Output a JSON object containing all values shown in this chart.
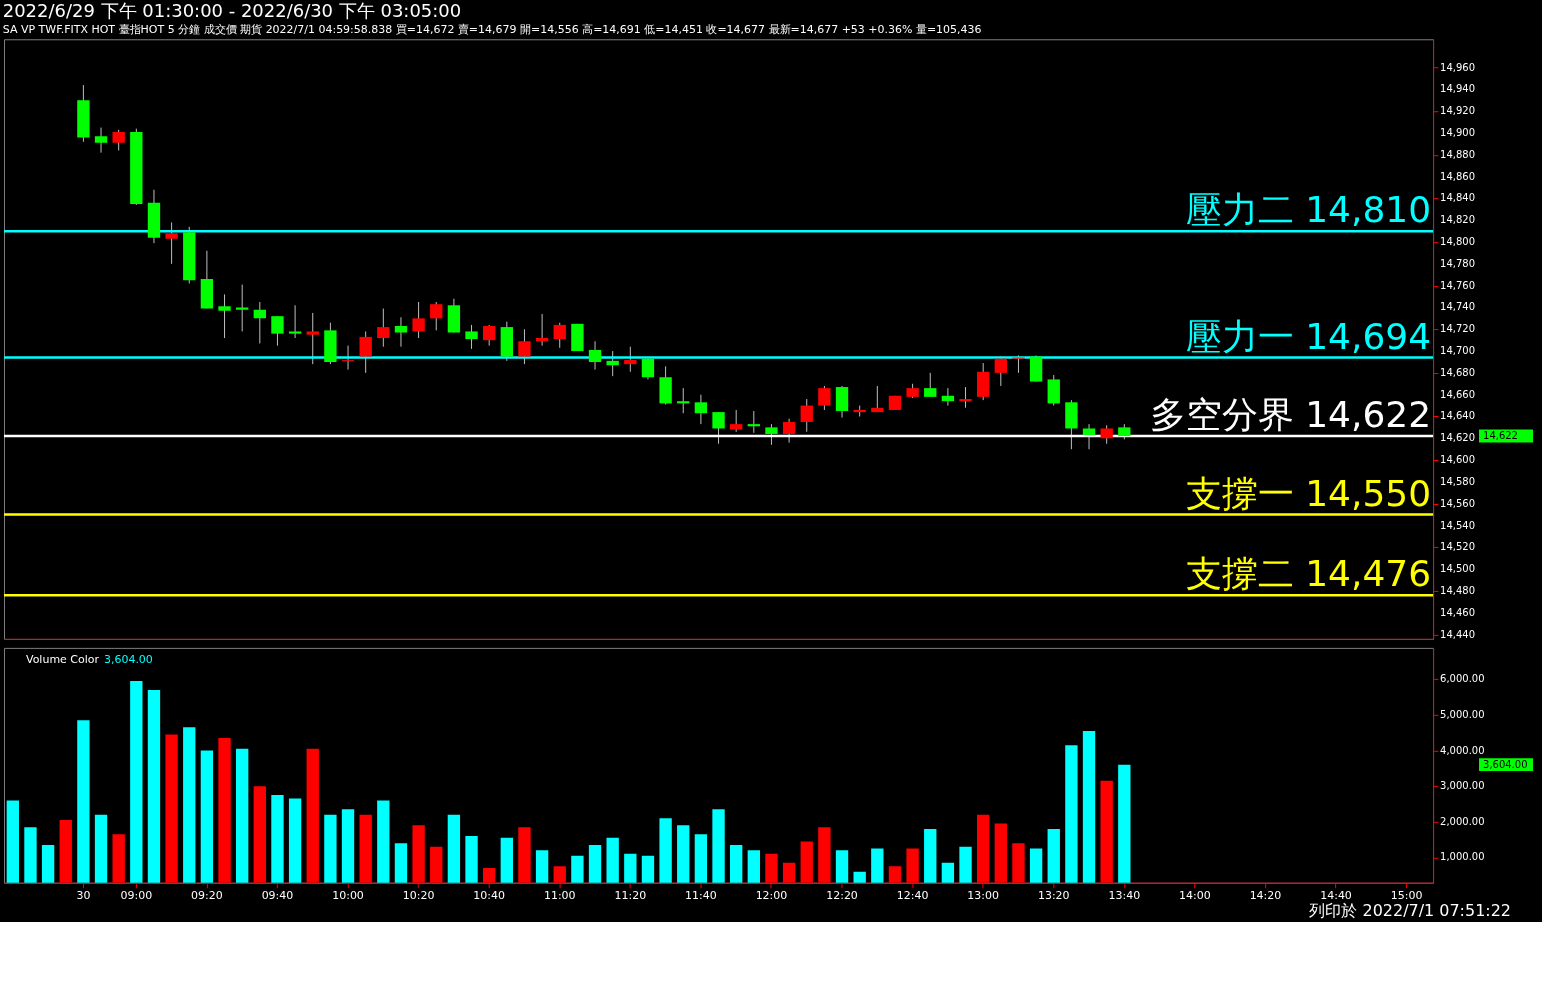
{
  "chart_data": [
    {
      "type": "candlestick",
      "title": "2022/6/29 下午 01:30:00 - 2022/6/30 下午 03:05:00",
      "subtitle": "SA  VP  TWF.FITX HOT  臺指HOT 5 分鐘  成交價  期貨  2022/7/1  04:59:58.838 買=14,672 賣=14,679 開=14,556 高=14,691 低=14,451 收=14,677 最新=14,677 +53 +0.36% 量=105,436",
      "categories": [
        null,
        null,
        null,
        null,
        null,
        null,
        null,
        null,
        null,
        null,
        null,
        null,
        null,
        null,
        null,
        null,
        null,
        null,
        null,
        null,
        null,
        null,
        null,
        null,
        null,
        null,
        null,
        null,
        null,
        null,
        null,
        null,
        null,
        null,
        null,
        null,
        null,
        null,
        null,
        null,
        null,
        null,
        null,
        null,
        null,
        null,
        null,
        null,
        null,
        null,
        null,
        null,
        null,
        null,
        null,
        null,
        null,
        null,
        null,
        null,
        null,
        null,
        null,
        null,
        null,
        null,
        null,
        null,
        null,
        null,
        null,
        null,
        null,
        null,
        null,
        null,
        null,
        null,
        null,
        null,
        null
      ],
      "ohlc": [
        null,
        null,
        null,
        null,
        [
          14930,
          14944,
          14892,
          14896
        ],
        [
          14897,
          14905,
          14882,
          14891
        ],
        [
          14891,
          14903,
          14884,
          14901
        ],
        [
          14901,
          14904,
          14834,
          14835
        ],
        [
          14836,
          14848,
          14799,
          14804
        ],
        [
          14803,
          14818,
          14780,
          14808
        ],
        [
          14809,
          14814,
          14762,
          14765
        ],
        [
          14766,
          14792,
          14739,
          14739
        ],
        [
          14741,
          14752,
          14712,
          14737
        ],
        [
          14740,
          14761,
          14718,
          14738
        ],
        [
          14738,
          14745,
          14707,
          14730
        ],
        [
          14732,
          14732,
          14705,
          14716
        ],
        [
          14718,
          14742,
          14712,
          14716
        ],
        [
          14715,
          14735,
          14688,
          14718
        ],
        [
          14719,
          14726,
          14688,
          14690
        ],
        [
          14691,
          14705,
          14683,
          14692
        ],
        [
          14695,
          14718,
          14680,
          14713
        ],
        [
          14712,
          14739,
          14704,
          14722
        ],
        [
          14723,
          14731,
          14704,
          14717
        ],
        [
          14718,
          14745,
          14712,
          14730
        ],
        [
          14730,
          14745,
          14719,
          14743
        ],
        [
          14742,
          14748,
          14717,
          14717
        ],
        [
          14718,
          14724,
          14702,
          14711
        ],
        [
          14710,
          14724,
          14705,
          14723
        ],
        [
          14722,
          14727,
          14691,
          14695
        ],
        [
          14695,
          14720,
          14688,
          14709
        ],
        [
          14709,
          14734,
          14705,
          14712
        ],
        [
          14711,
          14726,
          14703,
          14724
        ],
        [
          14725,
          14725,
          14700,
          14700
        ],
        [
          14701,
          14709,
          14683,
          14690
        ],
        [
          14691,
          14700,
          14677,
          14687
        ],
        [
          14688,
          14704,
          14681,
          14692
        ],
        [
          14693,
          14693,
          14674,
          14676
        ],
        [
          14676,
          14686,
          14651,
          14652
        ],
        [
          14654,
          14666,
          14643,
          14652
        ],
        [
          14653,
          14660,
          14633,
          14643
        ],
        [
          14644,
          14644,
          14615,
          14629
        ],
        [
          14628,
          14646,
          14626,
          14633
        ],
        [
          14633,
          14645,
          14625,
          14631
        ],
        [
          14630,
          14633,
          14614,
          14624
        ],
        [
          14624,
          14638,
          14616,
          14635
        ],
        [
          14635,
          14656,
          14626,
          14650
        ],
        [
          14650,
          14668,
          14646,
          14666
        ],
        [
          14667,
          14668,
          14639,
          14645
        ],
        [
          14644,
          14650,
          14640,
          14646
        ],
        [
          14644,
          14668,
          14644,
          14648
        ],
        [
          14646,
          14659,
          14646,
          14659
        ],
        [
          14658,
          14670,
          14657,
          14666
        ],
        [
          14666,
          14680,
          14658,
          14658
        ],
        [
          14659,
          14666,
          14650,
          14654
        ],
        [
          14654,
          14667,
          14648,
          14656
        ],
        [
          14658,
          14689,
          14655,
          14681
        ],
        [
          14680,
          14695,
          14668,
          14693
        ],
        [
          14693,
          14696,
          14680,
          14694
        ],
        [
          14695,
          14696,
          14672,
          14672
        ],
        [
          14674,
          14678,
          14650,
          14652
        ],
        [
          14653,
          14655,
          14610,
          14629
        ],
        [
          14629,
          14633,
          14610,
          14623
        ],
        [
          14620,
          14632,
          14615,
          14629
        ],
        [
          14630,
          14633,
          14619,
          14622
        ],
        null,
        null,
        null,
        null,
        null,
        null,
        null,
        null,
        null,
        null,
        null,
        null,
        null,
        null,
        null,
        null,
        null
      ],
      "colors": [
        null,
        null,
        null,
        null,
        "#00ff00",
        "#00ff00",
        "#ff0000",
        "#00ff00",
        "#00ff00",
        "#ff0000",
        "#00ff00",
        "#00ff00",
        "#00ff00",
        "#00ff00",
        "#00ff00",
        "#00ff00",
        "#00ff00",
        "#ff0000",
        "#00ff00",
        "#ff0000",
        "#ff0000",
        "#ff0000",
        "#00ff00",
        "#ff0000",
        "#ff0000",
        "#00ff00",
        "#00ff00",
        "#ff0000",
        "#00ff00",
        "#ff0000",
        "#ff0000",
        "#ff0000",
        "#00ff00",
        "#00ff00",
        "#00ff00",
        "#ff0000",
        "#00ff00",
        "#00ff00",
        "#00ff00",
        "#00ff00",
        "#00ff00",
        "#ff0000",
        "#00ff00",
        "#00ff00",
        "#ff0000",
        "#ff0000",
        "#ff0000",
        "#00ff00",
        "#ff0000",
        "#ff0000",
        "#ff0000",
        "#ff0000",
        "#00ff00",
        "#00ff00",
        "#ff0000",
        "#ff0000",
        "#ff0000",
        "#ff0000",
        "#00ff00",
        "#00ff00",
        "#00ff00",
        "#00ff00",
        "#ff0000",
        "#00ff00",
        null,
        null,
        null,
        null,
        null,
        null,
        null,
        null,
        null,
        null,
        null,
        null,
        null,
        null,
        null,
        null,
        null
      ],
      "ylim": [
        14436,
        14986
      ],
      "yticks": [
        {
          "value": 14440,
          "label": "14,440"
        },
        {
          "value": 14460,
          "label": "14,460"
        },
        {
          "value": 14480,
          "label": "14,480"
        },
        {
          "value": 14500,
          "label": "14,500"
        },
        {
          "value": 14520,
          "label": "14,520"
        },
        {
          "value": 14540,
          "label": "14,540"
        },
        {
          "value": 14560,
          "label": "14,560"
        },
        {
          "value": 14580,
          "label": "14,580"
        },
        {
          "value": 14600,
          "label": "14,600"
        },
        {
          "value": 14620,
          "label": "14,620"
        },
        {
          "value": 14640,
          "label": "14,640"
        },
        {
          "value": 14660,
          "label": "14,660"
        },
        {
          "value": 14680,
          "label": "14,680"
        },
        {
          "value": 14700,
          "label": "14,700"
        },
        {
          "value": 14720,
          "label": "14,720"
        },
        {
          "value": 14740,
          "label": "14,740"
        },
        {
          "value": 14760,
          "label": "14,760"
        },
        {
          "value": 14780,
          "label": "14,780"
        },
        {
          "value": 14800,
          "label": "14,800"
        },
        {
          "value": 14820,
          "label": "14,820"
        },
        {
          "value": 14840,
          "label": "14,840"
        },
        {
          "value": 14860,
          "label": "14,860"
        },
        {
          "value": 14880,
          "label": "14,880"
        },
        {
          "value": 14900,
          "label": "14,900"
        },
        {
          "value": 14920,
          "label": "14,920"
        },
        {
          "value": 14940,
          "label": "14,940"
        },
        {
          "value": 14960,
          "label": "14,960"
        }
      ],
      "ref_lines": [
        {
          "axis": "y",
          "value": 14810,
          "label": "壓力二 14,810",
          "color": "#00ffff"
        },
        {
          "axis": "y",
          "value": 14694,
          "label": "壓力一 14,694",
          "color": "#00ffff"
        },
        {
          "axis": "y",
          "value": 14622,
          "label": "多空分界 14,622",
          "color": "#ffffff"
        },
        {
          "axis": "y",
          "value": 14550,
          "label": "支撐一 14,550",
          "color": "#ffff00"
        },
        {
          "axis": "y",
          "value": 14476,
          "label": "支撐二 14,476",
          "color": "#ffff00"
        }
      ],
      "annotations": [
        "14,622"
      ],
      "tick_labels": "y",
      "grid": false
    },
    {
      "type": "bar",
      "title": "Volume Color",
      "categories": [
        null,
        null,
        null,
        null,
        "30",
        null,
        null,
        "09:00",
        null,
        null,
        null,
        "09:20",
        null,
        null,
        null,
        "09:40",
        null,
        null,
        null,
        "10:00",
        null,
        null,
        null,
        "10:20",
        null,
        null,
        null,
        "10:40",
        null,
        null,
        null,
        "11:00",
        null,
        null,
        null,
        "11:20",
        null,
        null,
        null,
        "11:40",
        null,
        null,
        null,
        "12:00",
        null,
        null,
        null,
        "12:20",
        null,
        null,
        null,
        "12:40",
        null,
        null,
        null,
        "13:00",
        null,
        null,
        null,
        "13:20",
        null,
        null,
        null,
        "13:40",
        null,
        null,
        null,
        "14:00",
        null,
        null,
        null,
        "14:20",
        null,
        null,
        null,
        "14:40",
        null,
        null,
        null,
        "15:00",
        null
      ],
      "values": [
        2600,
        1850,
        1350,
        2050,
        4850,
        2200,
        1650,
        5950,
        5700,
        4450,
        4650,
        4000,
        4350,
        4050,
        3000,
        2750,
        2650,
        4050,
        2200,
        2350,
        2200,
        2600,
        1400,
        1900,
        1300,
        2200,
        1600,
        700,
        1550,
        1850,
        1200,
        750,
        1050,
        1350,
        1550,
        1100,
        1050,
        2100,
        1900,
        1650,
        2350,
        1350,
        1200,
        1100,
        850,
        1450,
        1850,
        1200,
        600,
        1250,
        750,
        1250,
        1800,
        850,
        1300,
        2200,
        1950,
        1400,
        1250,
        1800,
        4150,
        4550,
        3150,
        3604,
        null,
        null,
        null,
        null,
        null,
        null,
        null,
        null,
        null,
        null,
        null,
        null,
        null,
        null,
        null,
        null,
        null
      ],
      "colors": [
        "#00ffff",
        "#00ffff",
        "#00ffff",
        "#ff0000",
        "#00ffff",
        "#00ffff",
        "#ff0000",
        "#00ffff",
        "#00ffff",
        "#ff0000",
        "#00ffff",
        "#00ffff",
        "#ff0000",
        "#00ffff",
        "#ff0000",
        "#00ffff",
        "#00ffff",
        "#ff0000",
        "#00ffff",
        "#00ffff",
        "#ff0000",
        "#00ffff",
        "#00ffff",
        "#ff0000",
        "#ff0000",
        "#00ffff",
        "#00ffff",
        "#ff0000",
        "#00ffff",
        "#ff0000",
        "#00ffff",
        "#ff0000",
        "#00ffff",
        "#00ffff",
        "#00ffff",
        "#00ffff",
        "#00ffff",
        "#00ffff",
        "#00ffff",
        "#00ffff",
        "#00ffff",
        "#00ffff",
        "#00ffff",
        "#ff0000",
        "#ff0000",
        "#ff0000",
        "#ff0000",
        "#00ffff",
        "#00ffff",
        "#00ffff",
        "#ff0000",
        "#ff0000",
        "#00ffff",
        "#00ffff",
        "#00ffff",
        "#ff0000",
        "#ff0000",
        "#ff0000",
        "#00ffff",
        "#00ffff",
        "#00ffff",
        "#00ffff",
        "#ff0000",
        "#00ffff",
        null,
        null,
        null,
        null,
        null,
        null,
        null,
        null,
        null,
        null,
        null,
        null,
        null,
        null,
        null,
        null,
        null
      ],
      "ylim": [
        290,
        6880
      ],
      "yticks": [
        {
          "value": 1000,
          "label": "1,000.00"
        },
        {
          "value": 2000,
          "label": "2,000.00"
        },
        {
          "value": 3000,
          "label": "3,000.00"
        },
        {
          "value": 4000,
          "label": "4,000.00"
        },
        {
          "value": 5000,
          "label": "5,000.00"
        },
        {
          "value": 6000,
          "label": "6,000.00"
        }
      ],
      "annotations": [
        "3,604.00",
        "列印於 2022/7/1 07:51:22"
      ],
      "grid": false
    }
  ]
}
